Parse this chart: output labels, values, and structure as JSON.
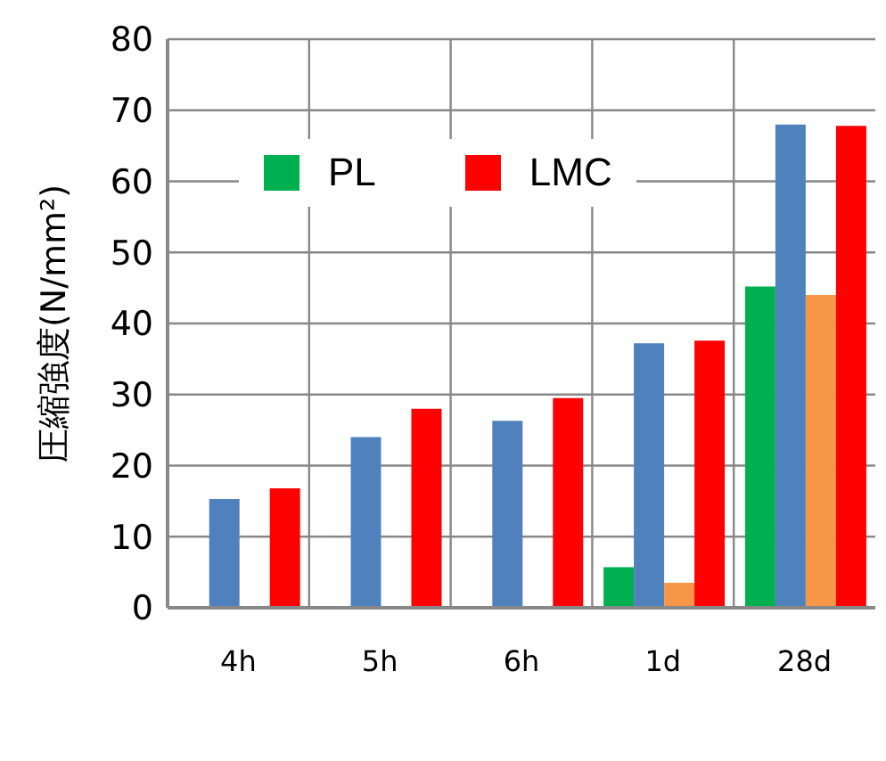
{
  "chart_data": {
    "type": "bar",
    "ylabel": "圧縮強度(N/mm²)",
    "categories": [
      "4h",
      "5h",
      "6h",
      "1d",
      "28d"
    ],
    "series": [
      {
        "name": "PL",
        "color": "#00b050",
        "values": [
          null,
          null,
          null,
          5.7,
          45.2
        ]
      },
      {
        "color": "#4f81bd",
        "values": [
          15.3,
          24,
          26.3,
          37.2,
          68
        ]
      },
      {
        "color": "#f79646",
        "values": [
          null,
          null,
          null,
          3.5,
          44
        ]
      },
      {
        "name": "LMC",
        "color": "#ff0000",
        "values": [
          16.8,
          28,
          29.5,
          37.6,
          67.8
        ]
      }
    ],
    "ylim": [
      0,
      80
    ],
    "yticks": [
      0,
      10,
      20,
      30,
      40,
      50,
      60,
      70,
      80
    ],
    "grid": true,
    "legend": "top left"
  }
}
